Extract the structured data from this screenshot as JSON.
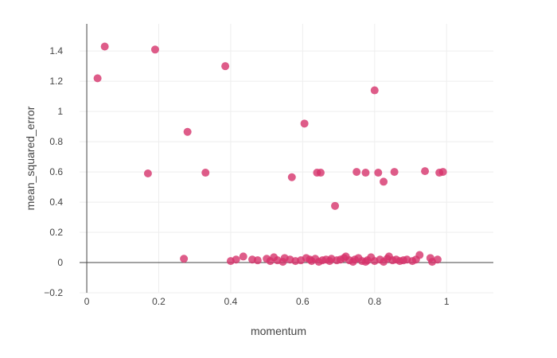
{
  "chart_data": {
    "type": "scatter",
    "xlabel": "momentum",
    "ylabel": "mean_squared_error",
    "xlim": [
      -0.02,
      1.13
    ],
    "ylim": [
      -0.2,
      1.58
    ],
    "x_ticks": [
      0,
      0.2,
      0.4,
      0.6,
      0.8,
      1
    ],
    "x_tick_labels": [
      "0",
      "0.2",
      "0.4",
      "0.6",
      "0.8",
      "1"
    ],
    "y_ticks": [
      -0.2,
      0,
      0.2,
      0.4,
      0.6,
      0.8,
      1,
      1.2,
      1.4
    ],
    "y_tick_labels": [
      "−0.2",
      "0",
      "0.2",
      "0.4",
      "0.6",
      "0.8",
      "1",
      "1.2",
      "1.4"
    ],
    "grid": true,
    "marker_color": "#d6336c",
    "series": [
      {
        "x": [
          0.03,
          0.05,
          0.17,
          0.19,
          0.27,
          0.28,
          0.33,
          0.385,
          0.57,
          0.605,
          0.64,
          0.65,
          0.69,
          0.75,
          0.775,
          0.8,
          0.81,
          0.825,
          0.855,
          0.94,
          0.98,
          0.99,
          0.4,
          0.415,
          0.435,
          0.46,
          0.475,
          0.5,
          0.51,
          0.52,
          0.53,
          0.545,
          0.55,
          0.565,
          0.58,
          0.595,
          0.61,
          0.62,
          0.625,
          0.635,
          0.645,
          0.655,
          0.665,
          0.675,
          0.68,
          0.695,
          0.705,
          0.715,
          0.72,
          0.73,
          0.74,
          0.745,
          0.755,
          0.765,
          0.775,
          0.78,
          0.79,
          0.8,
          0.815,
          0.825,
          0.835,
          0.84,
          0.85,
          0.86,
          0.87,
          0.88,
          0.89,
          0.905,
          0.915,
          0.925,
          0.955,
          0.96,
          0.975
        ],
        "y": [
          1.22,
          1.43,
          0.59,
          1.41,
          0.025,
          0.865,
          0.595,
          1.3,
          0.565,
          0.92,
          0.595,
          0.595,
          0.375,
          0.6,
          0.595,
          1.14,
          0.595,
          0.535,
          0.6,
          0.605,
          0.595,
          0.6,
          0.01,
          0.02,
          0.04,
          0.02,
          0.015,
          0.025,
          0.01,
          0.035,
          0.015,
          0.005,
          0.03,
          0.02,
          0.01,
          0.015,
          0.03,
          0.02,
          0.01,
          0.025,
          0.005,
          0.015,
          0.02,
          0.01,
          0.025,
          0.015,
          0.02,
          0.03,
          0.04,
          0.015,
          0.005,
          0.02,
          0.03,
          0.01,
          0.005,
          0.015,
          0.035,
          0.01,
          0.02,
          0.005,
          0.025,
          0.04,
          0.015,
          0.02,
          0.01,
          0.015,
          0.02,
          0.01,
          0.02,
          0.05,
          0.03,
          0.005,
          0.02
        ]
      }
    ]
  }
}
